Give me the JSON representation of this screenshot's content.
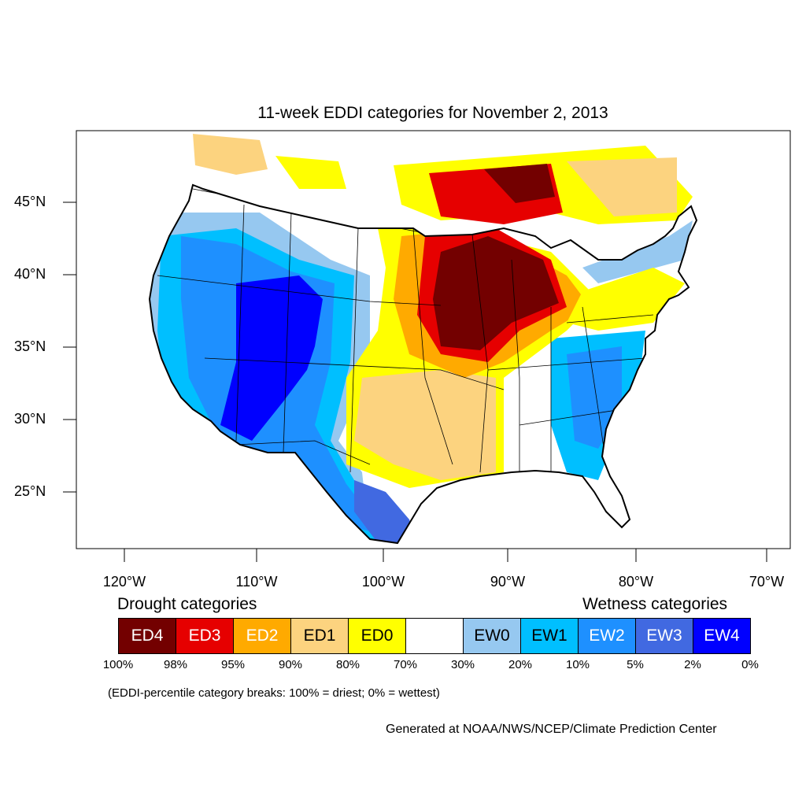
{
  "title": "11-week EDDI categories for November 2, 2013",
  "lat_labels": [
    "45°N",
    "40°N",
    "35°N",
    "30°N",
    "25°N"
  ],
  "lon_labels": [
    "120°W",
    "110°W",
    "100°W",
    "90°W",
    "80°W",
    "70°W"
  ],
  "legend": {
    "drought_heading": "Drought categories",
    "wetness_heading": "Wetness categories",
    "categories": [
      {
        "label": "ED4",
        "color": "#730000"
      },
      {
        "label": "ED3",
        "color": "#E60000"
      },
      {
        "label": "ED2",
        "color": "#FFAA00"
      },
      {
        "label": "ED1",
        "color": "#FCD37F"
      },
      {
        "label": "ED0",
        "color": "#FFFF00"
      },
      {
        "label": "",
        "color": "#FFFFFF"
      },
      {
        "label": "EW0",
        "color": "#96C8F0"
      },
      {
        "label": "EW1",
        "color": "#00BFFF"
      },
      {
        "label": "EW2",
        "color": "#1E90FF"
      },
      {
        "label": "EW3",
        "color": "#4169E1"
      },
      {
        "label": "EW4",
        "color": "#0000FF"
      }
    ],
    "percent_breaks": [
      "100%",
      "98%",
      "95%",
      "90%",
      "80%",
      "70%",
      "30%",
      "20%",
      "10%",
      "5%",
      "2%",
      "0%"
    ]
  },
  "note": "(EDDI-percentile category breaks: 100% = driest; 0% = wettest)",
  "credit": "Generated at NOAA/NWS/NCEP/Climate Prediction Center"
}
